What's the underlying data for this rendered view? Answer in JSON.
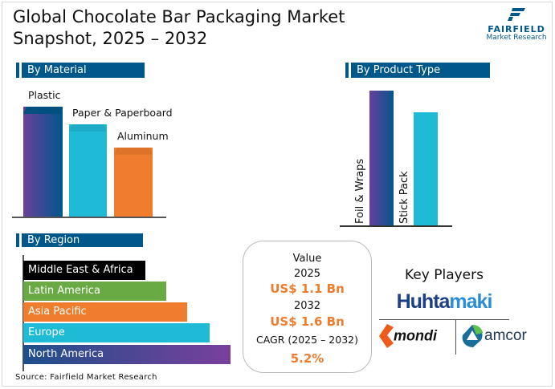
{
  "title_line1": "Global Chocolate Bar Packaging Market",
  "title_line2": "Snapshot, 2025 – 2032",
  "logo": {
    "brand": "FAIRFIELD",
    "sub": "Market Research"
  },
  "material": {
    "header": "By Material",
    "items": [
      {
        "label": "Plastic",
        "relative_value": 1.0,
        "color": "#6a3f9c"
      },
      {
        "label": "Paper & Paperboard",
        "relative_value": 0.84,
        "color": "#1fbad6"
      },
      {
        "label": "Aluminum",
        "relative_value": 0.63,
        "color": "#ef7d2d"
      }
    ]
  },
  "product": {
    "header": "By Product Type",
    "items": [
      {
        "label": "Foil & Wraps",
        "relative_value": 1.0,
        "color": "#00578a"
      },
      {
        "label": "Stick Pack",
        "relative_value": 0.84,
        "color": "#1fbad6"
      }
    ]
  },
  "region": {
    "header": "By Region",
    "items": [
      {
        "label": "Middle East & Africa",
        "relative_value": 0.59,
        "color": "#000000"
      },
      {
        "label": "Latin America",
        "relative_value": 0.69,
        "color": "#6aaa45"
      },
      {
        "label": "Asia Pacific",
        "relative_value": 0.79,
        "color": "#ef7d2d"
      },
      {
        "label": "Europe",
        "relative_value": 0.9,
        "color": "#1fbad6"
      },
      {
        "label": "North America",
        "relative_value": 1.0,
        "color": "#1d4f8a"
      }
    ]
  },
  "value_box": {
    "label": "Value",
    "year1": "2025",
    "value1": "US$ 1.1 Bn",
    "year2": "2032",
    "value2": "US$ 1.6 Bn",
    "cagr_label": "CAGR (2025 – 2032)",
    "cagr": "5.2%",
    "accent": "#ef7d2d"
  },
  "key_players": {
    "title": "Key Players",
    "logos": [
      "Huhtamaki",
      "mondi",
      "amcor"
    ]
  },
  "source": "Source: Fairfield Market Research"
}
